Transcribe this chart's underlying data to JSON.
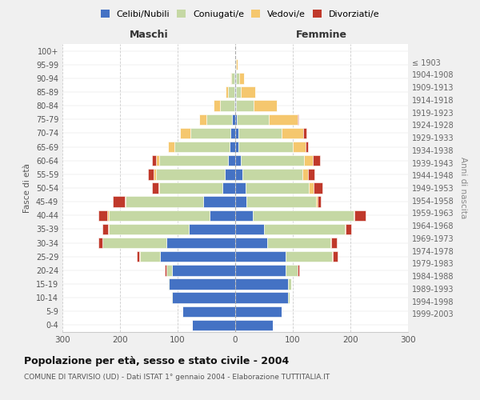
{
  "age_groups": [
    "0-4",
    "5-9",
    "10-14",
    "15-19",
    "20-24",
    "25-29",
    "30-34",
    "35-39",
    "40-44",
    "45-49",
    "50-54",
    "55-59",
    "60-64",
    "65-69",
    "70-74",
    "75-79",
    "80-84",
    "85-89",
    "90-94",
    "95-99",
    "100+"
  ],
  "birth_years": [
    "1999-2003",
    "1994-1998",
    "1989-1993",
    "1984-1988",
    "1979-1983",
    "1974-1978",
    "1969-1973",
    "1964-1968",
    "1959-1963",
    "1954-1958",
    "1949-1953",
    "1944-1948",
    "1939-1943",
    "1934-1938",
    "1929-1933",
    "1924-1928",
    "1919-1923",
    "1914-1918",
    "1909-1913",
    "1904-1908",
    "≤ 1903"
  ],
  "male": {
    "celibi": [
      75,
      92,
      110,
      115,
      110,
      130,
      120,
      80,
      45,
      55,
      22,
      18,
      12,
      10,
      8,
      5,
      2,
      2,
      2,
      0,
      0
    ],
    "coniugati": [
      0,
      0,
      1,
      2,
      10,
      35,
      110,
      140,
      175,
      135,
      110,
      120,
      120,
      95,
      70,
      45,
      25,
      10,
      5,
      1,
      0
    ],
    "vedovi": [
      0,
      0,
      0,
      0,
      0,
      1,
      0,
      1,
      2,
      2,
      2,
      3,
      5,
      12,
      18,
      12,
      10,
      5,
      2,
      0,
      0
    ],
    "divorziati": [
      0,
      0,
      0,
      0,
      2,
      5,
      8,
      10,
      15,
      20,
      10,
      10,
      8,
      0,
      0,
      0,
      0,
      0,
      0,
      0,
      0
    ]
  },
  "female": {
    "nubili": [
      65,
      80,
      92,
      92,
      88,
      88,
      55,
      50,
      30,
      20,
      18,
      12,
      10,
      5,
      5,
      3,
      2,
      2,
      2,
      0,
      0
    ],
    "coniugate": [
      0,
      0,
      2,
      5,
      20,
      80,
      110,
      140,
      175,
      120,
      110,
      105,
      110,
      95,
      75,
      55,
      30,
      8,
      5,
      2,
      0
    ],
    "vedove": [
      0,
      0,
      0,
      0,
      1,
      2,
      2,
      2,
      2,
      3,
      8,
      10,
      15,
      22,
      38,
      50,
      40,
      25,
      8,
      2,
      0
    ],
    "divorziate": [
      0,
      0,
      0,
      0,
      2,
      8,
      10,
      10,
      20,
      5,
      15,
      10,
      12,
      5,
      5,
      2,
      0,
      0,
      0,
      0,
      0
    ]
  },
  "colors": {
    "celibi": "#4472C4",
    "coniugati": "#C5D8A4",
    "vedovi": "#F5C76E",
    "divorziati": "#C0392B"
  },
  "xlim": 300,
  "title": "Popolazione per età, sesso e stato civile - 2004",
  "subtitle": "COMUNE DI TARVISIO (UD) - Dati ISTAT 1° gennaio 2004 - Elaborazione TUTTITALIA.IT",
  "xlabel_left": "Maschi",
  "xlabel_right": "Femmine",
  "ylabel_left": "Fasce di età",
  "ylabel_right": "Anni di nascita",
  "bg_color": "#f0f0f0",
  "plot_bg_color": "#ffffff"
}
